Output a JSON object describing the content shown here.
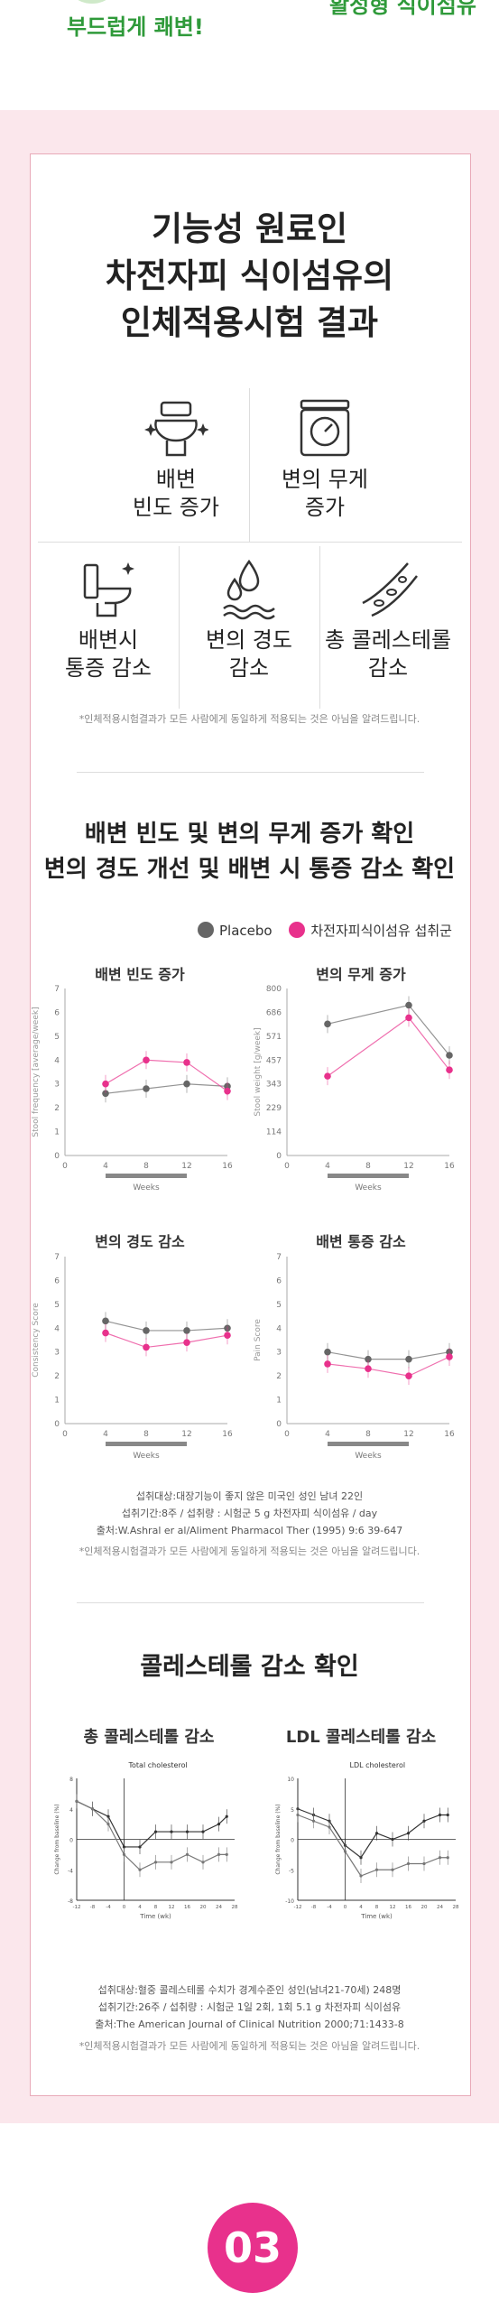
{
  "top": {
    "left_text": "부드럽게 쾌변!",
    "right_text": "활성형 식이섬유"
  },
  "section1": {
    "title_lines": [
      "기능성 원료인",
      "차전자피 식이섬유의",
      "인체적용시험 결과"
    ],
    "icons": [
      {
        "icon": "toilet-sparkle-icon",
        "label_lines": [
          "배변",
          "빈도 증가"
        ]
      },
      {
        "icon": "scale-icon",
        "label_lines": [
          "변의 무게",
          "증가"
        ]
      },
      {
        "icon": "toilet-sparkle-icon",
        "label_lines": [
          "배변시",
          "통증 감소"
        ]
      },
      {
        "icon": "water-drops-icon",
        "label_lines": [
          "변의 경도",
          "감소"
        ]
      },
      {
        "icon": "vessel-icon",
        "label_lines": [
          "총 콜레스테롤",
          "감소"
        ]
      }
    ],
    "note": "*인체적용시험결과가 모든 사람에게 동일하게 적용되는 것은 아님을 알려드립니다."
  },
  "section2": {
    "title_lines": [
      "배변 빈도 및 변의 무게 증가 확인",
      "변의 경도 개선 및 배변 시 통증 감소 확인"
    ],
    "legend": [
      {
        "label": "Placebo",
        "color": "#666666"
      },
      {
        "label": "차전자피식이섬유 섭취군",
        "color": "#e8318c"
      }
    ],
    "source_lines": [
      "섭취대상:대장기능이 좋지 않은 미국인 성인 남녀 22인",
      "섭취기간:8주 / 섭취량 : 시험군 5 g 차전자피 식이섬유 / day",
      "출처:W.Ashral er al/Aliment Pharmacol Ther (1995) 9:6 39-647"
    ],
    "note": "*인체적용시험결과가 모든 사람에게 동일하게 적용되는 것은 아님을 알려드립니다."
  },
  "section3": {
    "title": "콜레스테롤 감소 확인",
    "source_lines": [
      "섭취대상:혈중 콜레스테롤 수치가 경계수준인 성인(남녀21-70세) 248명",
      "섭취기간:26주 / 섭취량 : 시험군 1일 2회, 1회 5.1 g 차전자피 식이섬유",
      "출처:The American Journal of Clinical Nutrition 2000;71:1433-8"
    ],
    "note": "*인체적용시험결과가 모든 사람에게 동일하게 적용되는 것은 아님을 알려드립니다."
  },
  "badge": "03",
  "chart_data": [
    {
      "type": "line",
      "title": "배변 빈도 증가",
      "xlabel": "Weeks",
      "ylabel": "Stool frequency [average/week]",
      "x": [
        4,
        8,
        12,
        16
      ],
      "xlim": [
        0,
        16
      ],
      "ylim": [
        0,
        7
      ],
      "series": [
        {
          "name": "Placebo",
          "values": [
            2.6,
            2.8,
            3.0,
            2.9
          ]
        },
        {
          "name": "차전자피식이섬유 섭취군",
          "values": [
            3.0,
            4.0,
            3.9,
            2.7
          ]
        }
      ]
    },
    {
      "type": "line",
      "title": "변의 무게 증가",
      "xlabel": "Weeks",
      "ylabel": "Stool weight [g/week]",
      "x": [
        4,
        8,
        12,
        16
      ],
      "xlim": [
        0,
        16
      ],
      "ylim": [
        0,
        800
      ],
      "series": [
        {
          "name": "Placebo",
          "values": [
            630,
            null,
            720,
            480
          ]
        },
        {
          "name": "차전자피식이섬유 섭취군",
          "values": [
            380,
            null,
            660,
            410
          ]
        }
      ]
    },
    {
      "type": "line",
      "title": "변의 경도 감소",
      "xlabel": "Weeks",
      "ylabel": "Consistency Score",
      "x": [
        4,
        8,
        12,
        16
      ],
      "xlim": [
        0,
        16
      ],
      "ylim": [
        0,
        7
      ],
      "series": [
        {
          "name": "Placebo",
          "values": [
            4.3,
            3.9,
            3.9,
            4.0
          ]
        },
        {
          "name": "차전자피식이섬유 섭취군",
          "values": [
            3.8,
            3.2,
            3.4,
            3.7
          ]
        }
      ]
    },
    {
      "type": "line",
      "title": "배변 통증 감소",
      "xlabel": "Weeks",
      "ylabel": "Pain Score",
      "x": [
        4,
        8,
        12,
        16
      ],
      "xlim": [
        0,
        16
      ],
      "ylim": [
        0,
        7
      ],
      "series": [
        {
          "name": "Placebo",
          "values": [
            3.0,
            2.7,
            2.7,
            3.0
          ]
        },
        {
          "name": "차전자피식이섬유 섭취군",
          "values": [
            2.5,
            2.3,
            2.0,
            2.8
          ]
        }
      ]
    },
    {
      "type": "line",
      "title": "총 콜레스테롤 감소",
      "subtitle": "Total cholesterol",
      "xlabel": "Time (wk)",
      "ylabel": "Change from baseline (%)",
      "x": [
        -12,
        -8,
        -4,
        0,
        4,
        8,
        12,
        16,
        20,
        24,
        26
      ],
      "xlim": [
        -12,
        28
      ],
      "ylim": [
        -8,
        8
      ],
      "series": [
        {
          "values": [
            5,
            4,
            3,
            -1,
            -1,
            1,
            1,
            1,
            1,
            2,
            3
          ]
        },
        {
          "values": [
            5,
            4,
            2,
            -2,
            -4,
            -3,
            -3,
            -2,
            -3,
            -2,
            -2
          ]
        }
      ]
    },
    {
      "type": "line",
      "title": "LDL 콜레스테롤 감소",
      "subtitle": "LDL cholesterol",
      "xlabel": "Time (wk)",
      "ylabel": "Change from baseline (%)",
      "x": [
        -12,
        -8,
        -4,
        0,
        4,
        8,
        12,
        16,
        20,
        24,
        26
      ],
      "xlim": [
        -12,
        28
      ],
      "ylim": [
        -10,
        10
      ],
      "series": [
        {
          "values": [
            5,
            4,
            3,
            -1,
            -3,
            1,
            0,
            1,
            3,
            4,
            4
          ]
        },
        {
          "values": [
            4,
            3,
            2,
            -2,
            -6,
            -5,
            -5,
            -4,
            -4,
            -3,
            -3
          ]
        }
      ]
    }
  ]
}
